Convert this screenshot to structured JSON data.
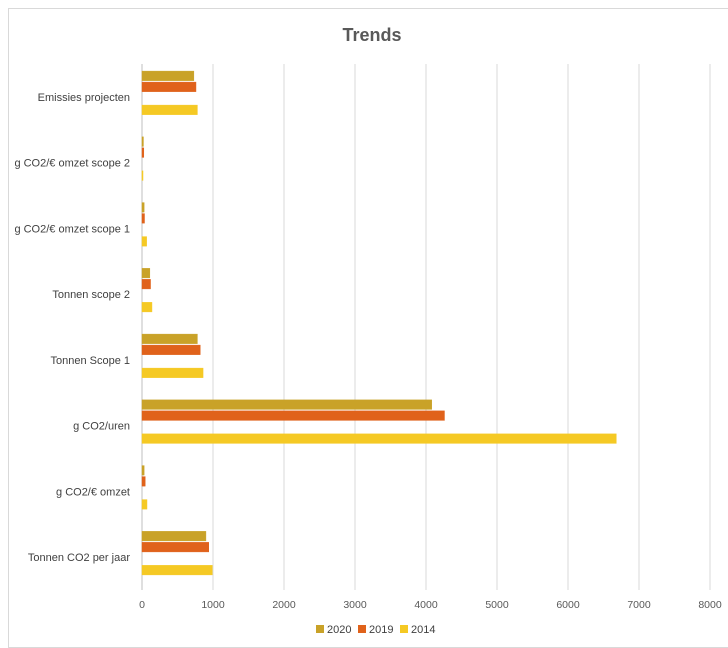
{
  "chart_data": {
    "type": "bar",
    "orientation": "horizontal",
    "title": "Trends",
    "categories": [
      "Emissies projecten",
      "g CO2/€ omzet scope 2",
      "g CO2/€ omzet scope 1",
      "Tonnen scope 2",
      "Tonnen Scope 1",
      "g CO2/uren",
      "g CO2/€ omzet",
      "Tonnen CO2 per jaar"
    ],
    "series": [
      {
        "name": "2020",
        "color": "#c9a228",
        "values": [
          730,
          20,
          30,
          110,
          780,
          4080,
          30,
          900
        ]
      },
      {
        "name": "2019",
        "color": "#e0621b",
        "values": [
          760,
          25,
          35,
          120,
          820,
          4260,
          45,
          940
        ]
      },
      {
        "name": "2014",
        "color": "#f5c924",
        "values": [
          780,
          10,
          65,
          140,
          860,
          6680,
          70,
          990
        ]
      }
    ],
    "xlim": [
      0,
      8000
    ],
    "xticks": [
      "0",
      "1000",
      "2000",
      "3000",
      "4000",
      "5000",
      "6000",
      "7000",
      "8000"
    ],
    "grid": true,
    "legend_position": "bottom"
  }
}
